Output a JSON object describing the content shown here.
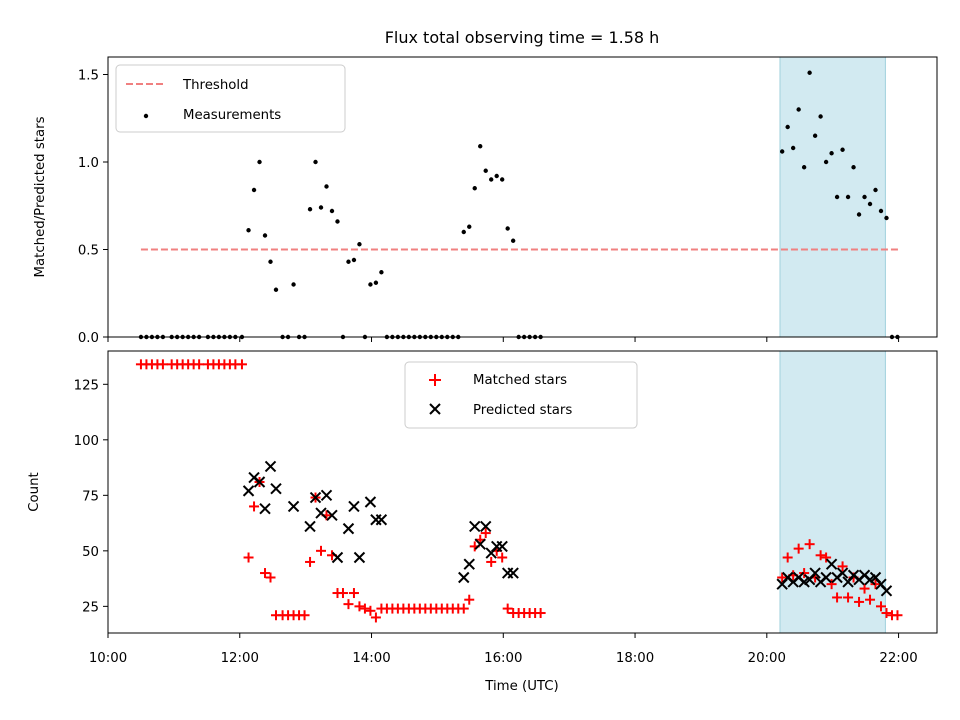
{
  "chart_data": [
    {
      "type": "scatter",
      "title": "Flux total observing time = 1.58 h",
      "xlabel": "",
      "ylabel": "Matched/Predicted stars",
      "xlim": [
        "10:00",
        "22:35"
      ],
      "ylim": [
        0,
        1.6
      ],
      "yticks": [
        "0.0",
        "0.5",
        "1.0",
        "1.5"
      ],
      "grid": false,
      "legend_position": "upper-left",
      "shaded_span": {
        "from": "20:12",
        "to": "21:48",
        "color": "#add8e6"
      },
      "threshold": {
        "name": "Threshold",
        "value": 0.5,
        "from": "10:30",
        "to": "22:00",
        "color": "#f08080",
        "style": "dashed"
      },
      "series": [
        {
          "name": "Measurements",
          "color": "#000000",
          "points": [
            [
              "10:30",
              0
            ],
            [
              "10:35",
              0
            ],
            [
              "10:40",
              0
            ],
            [
              "10:45",
              0
            ],
            [
              "10:50",
              0
            ],
            [
              "10:58",
              0
            ],
            [
              "11:03",
              0
            ],
            [
              "11:08",
              0
            ],
            [
              "11:13",
              0
            ],
            [
              "11:18",
              0
            ],
            [
              "11:23",
              0
            ],
            [
              "11:31",
              0
            ],
            [
              "11:36",
              0
            ],
            [
              "11:41",
              0
            ],
            [
              "11:46",
              0
            ],
            [
              "11:51",
              0
            ],
            [
              "11:56",
              0
            ],
            [
              "12:02",
              0
            ],
            [
              "12:08",
              0.61
            ],
            [
              "12:13",
              0.84
            ],
            [
              "12:18",
              1.0
            ],
            [
              "12:23",
              0.58
            ],
            [
              "12:28",
              0.43
            ],
            [
              "12:33",
              0.27
            ],
            [
              "12:39",
              0
            ],
            [
              "12:44",
              0
            ],
            [
              "12:49",
              0.3
            ],
            [
              "12:54",
              0
            ],
            [
              "12:59",
              0
            ],
            [
              "13:04",
              0.73
            ],
            [
              "13:09",
              1.0
            ],
            [
              "13:14",
              0.74
            ],
            [
              "13:19",
              0.86
            ],
            [
              "13:24",
              0.72
            ],
            [
              "13:29",
              0.66
            ],
            [
              "13:34",
              0
            ],
            [
              "13:39",
              0.43
            ],
            [
              "13:44",
              0.44
            ],
            [
              "13:49",
              0.53
            ],
            [
              "13:54",
              0
            ],
            [
              "13:59",
              0.3
            ],
            [
              "14:04",
              0.31
            ],
            [
              "14:09",
              0.37
            ],
            [
              "14:14",
              0
            ],
            [
              "14:19",
              0
            ],
            [
              "14:24",
              0
            ],
            [
              "14:29",
              0
            ],
            [
              "14:34",
              0
            ],
            [
              "14:39",
              0
            ],
            [
              "14:44",
              0
            ],
            [
              "14:49",
              0
            ],
            [
              "14:54",
              0
            ],
            [
              "14:59",
              0
            ],
            [
              "15:04",
              0
            ],
            [
              "15:09",
              0
            ],
            [
              "15:14",
              0
            ],
            [
              "15:19",
              0
            ],
            [
              "15:24",
              0.6
            ],
            [
              "15:29",
              0.63
            ],
            [
              "15:34",
              0.85
            ],
            [
              "15:39",
              1.09
            ],
            [
              "15:44",
              0.95
            ],
            [
              "15:49",
              0.9
            ],
            [
              "15:54",
              0.92
            ],
            [
              "15:59",
              0.9
            ],
            [
              "16:04",
              0.62
            ],
            [
              "16:09",
              0.55
            ],
            [
              "16:14",
              0
            ],
            [
              "16:19",
              0
            ],
            [
              "16:24",
              0
            ],
            [
              "16:29",
              0
            ],
            [
              "16:34",
              0
            ],
            [
              "20:14",
              1.06
            ],
            [
              "20:19",
              1.2
            ],
            [
              "20:24",
              1.08
            ],
            [
              "20:29",
              1.3
            ],
            [
              "20:34",
              0.97
            ],
            [
              "20:39",
              1.51
            ],
            [
              "20:44",
              1.15
            ],
            [
              "20:49",
              1.26
            ],
            [
              "20:54",
              1.0
            ],
            [
              "20:59",
              1.05
            ],
            [
              "21:04",
              0.8
            ],
            [
              "21:09",
              1.07
            ],
            [
              "21:14",
              0.8
            ],
            [
              "21:19",
              0.97
            ],
            [
              "21:24",
              0.7
            ],
            [
              "21:29",
              0.8
            ],
            [
              "21:34",
              0.76
            ],
            [
              "21:39",
              0.84
            ],
            [
              "21:44",
              0.72
            ],
            [
              "21:49",
              0.68
            ],
            [
              "21:54",
              0
            ],
            [
              "21:59",
              0
            ]
          ]
        }
      ]
    },
    {
      "type": "scatter",
      "title": "",
      "xlabel": "Time (UTC)",
      "ylabel": "Count",
      "xlim": [
        "10:00",
        "22:35"
      ],
      "ylim": [
        13,
        140
      ],
      "yticks": [
        "25",
        "50",
        "75",
        "100",
        "125"
      ],
      "xticks": [
        "10:00",
        "12:00",
        "14:00",
        "16:00",
        "18:00",
        "20:00",
        "22:00"
      ],
      "grid": false,
      "legend_position": "upper-center",
      "shaded_span": {
        "from": "20:12",
        "to": "21:48",
        "color": "#add8e6"
      },
      "series": [
        {
          "name": "Matched stars",
          "marker": "+",
          "color": "#ff0000",
          "points": [
            [
              "10:30",
              134
            ],
            [
              "10:35",
              134
            ],
            [
              "10:40",
              134
            ],
            [
              "10:45",
              134
            ],
            [
              "10:50",
              134
            ],
            [
              "10:58",
              134
            ],
            [
              "11:03",
              134
            ],
            [
              "11:08",
              134
            ],
            [
              "11:13",
              134
            ],
            [
              "11:18",
              134
            ],
            [
              "11:23",
              134
            ],
            [
              "11:31",
              134
            ],
            [
              "11:36",
              134
            ],
            [
              "11:41",
              134
            ],
            [
              "11:46",
              134
            ],
            [
              "11:51",
              134
            ],
            [
              "11:56",
              134
            ],
            [
              "12:02",
              134
            ],
            [
              "12:08",
              47
            ],
            [
              "12:13",
              70
            ],
            [
              "12:18",
              81
            ],
            [
              "12:23",
              40
            ],
            [
              "12:28",
              38
            ],
            [
              "12:33",
              21
            ],
            [
              "12:39",
              21
            ],
            [
              "12:44",
              21
            ],
            [
              "12:49",
              21
            ],
            [
              "12:54",
              21
            ],
            [
              "12:59",
              21
            ],
            [
              "13:04",
              45
            ],
            [
              "13:09",
              74
            ],
            [
              "13:14",
              50
            ],
            [
              "13:19",
              66
            ],
            [
              "13:24",
              48
            ],
            [
              "13:29",
              31
            ],
            [
              "13:34",
              31
            ],
            [
              "13:39",
              26
            ],
            [
              "13:44",
              31
            ],
            [
              "13:49",
              25
            ],
            [
              "13:54",
              24
            ],
            [
              "13:59",
              23
            ],
            [
              "14:04",
              20
            ],
            [
              "14:09",
              24
            ],
            [
              "14:14",
              24
            ],
            [
              "14:19",
              24
            ],
            [
              "14:24",
              24
            ],
            [
              "14:29",
              24
            ],
            [
              "14:34",
              24
            ],
            [
              "14:39",
              24
            ],
            [
              "14:44",
              24
            ],
            [
              "14:49",
              24
            ],
            [
              "14:54",
              24
            ],
            [
              "14:59",
              24
            ],
            [
              "15:04",
              24
            ],
            [
              "15:09",
              24
            ],
            [
              "15:14",
              24
            ],
            [
              "15:19",
              24
            ],
            [
              "15:24",
              24
            ],
            [
              "15:29",
              28
            ],
            [
              "15:34",
              52
            ],
            [
              "15:39",
              55
            ],
            [
              "15:44",
              58
            ],
            [
              "15:49",
              45
            ],
            [
              "15:54",
              50
            ],
            [
              "15:59",
              47
            ],
            [
              "16:04",
              24
            ],
            [
              "16:09",
              22
            ],
            [
              "16:14",
              22
            ],
            [
              "16:19",
              22
            ],
            [
              "16:24",
              22
            ],
            [
              "16:29",
              22
            ],
            [
              "16:34",
              22
            ],
            [
              "20:14",
              38
            ],
            [
              "20:19",
              47
            ],
            [
              "20:24",
              39
            ],
            [
              "20:29",
              51
            ],
            [
              "20:34",
              40
            ],
            [
              "20:39",
              53
            ],
            [
              "20:44",
              38
            ],
            [
              "20:49",
              48
            ],
            [
              "20:54",
              47
            ],
            [
              "20:59",
              35
            ],
            [
              "21:04",
              29
            ],
            [
              "21:09",
              43
            ],
            [
              "21:14",
              29
            ],
            [
              "21:19",
              38
            ],
            [
              "21:24",
              27
            ],
            [
              "21:29",
              33
            ],
            [
              "21:34",
              28
            ],
            [
              "21:39",
              35
            ],
            [
              "21:44",
              25
            ],
            [
              "21:49",
              22
            ],
            [
              "21:54",
              21
            ],
            [
              "21:59",
              21
            ]
          ]
        },
        {
          "name": "Predicted stars",
          "marker": "x",
          "color": "#000000",
          "points": [
            [
              "12:08",
              77
            ],
            [
              "12:13",
              83
            ],
            [
              "12:18",
              81
            ],
            [
              "12:23",
              69
            ],
            [
              "12:28",
              88
            ],
            [
              "12:33",
              78
            ],
            [
              "12:49",
              70
            ],
            [
              "13:04",
              61
            ],
            [
              "13:09",
              74
            ],
            [
              "13:14",
              67
            ],
            [
              "13:19",
              75
            ],
            [
              "13:24",
              66
            ],
            [
              "13:29",
              47
            ],
            [
              "13:39",
              60
            ],
            [
              "13:44",
              70
            ],
            [
              "13:49",
              47
            ],
            [
              "13:59",
              72
            ],
            [
              "14:04",
              64
            ],
            [
              "14:09",
              64
            ],
            [
              "15:24",
              38
            ],
            [
              "15:29",
              44
            ],
            [
              "15:34",
              61
            ],
            [
              "15:39",
              53
            ],
            [
              "15:44",
              61
            ],
            [
              "15:49",
              49
            ],
            [
              "15:54",
              52
            ],
            [
              "15:59",
              52
            ],
            [
              "16:04",
              40
            ],
            [
              "16:09",
              40
            ],
            [
              "20:14",
              35
            ],
            [
              "20:19",
              38
            ],
            [
              "20:24",
              36
            ],
            [
              "20:29",
              38
            ],
            [
              "20:34",
              36
            ],
            [
              "20:39",
              37
            ],
            [
              "20:44",
              40
            ],
            [
              "20:49",
              36
            ],
            [
              "20:54",
              38
            ],
            [
              "20:59",
              44
            ],
            [
              "21:04",
              38
            ],
            [
              "21:09",
              40
            ],
            [
              "21:14",
              36
            ],
            [
              "21:19",
              39
            ],
            [
              "21:24",
              37
            ],
            [
              "21:29",
              39
            ],
            [
              "21:34",
              37
            ],
            [
              "21:39",
              38
            ],
            [
              "21:44",
              35
            ],
            [
              "21:49",
              32
            ]
          ]
        }
      ]
    }
  ]
}
